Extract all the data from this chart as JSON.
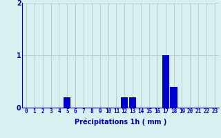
{
  "hours": [
    0,
    1,
    2,
    3,
    4,
    5,
    6,
    7,
    8,
    9,
    10,
    11,
    12,
    13,
    14,
    15,
    16,
    17,
    18,
    19,
    20,
    21,
    22,
    23
  ],
  "values": [
    0,
    0,
    0,
    0,
    0,
    0.2,
    0,
    0,
    0,
    0,
    0,
    0,
    0.2,
    0.2,
    0,
    0,
    0,
    1.0,
    0.4,
    0,
    0,
    0,
    0,
    0
  ],
  "bar_color": "#0000cc",
  "background_color": "#d8f0f0",
  "grid_color": "#b8d0d0",
  "axis_color": "#0000aa",
  "xlabel": "Précipitations 1h ( mm )",
  "ylim": [
    0,
    2
  ],
  "yticks": [
    0,
    1,
    2
  ],
  "xlim": [
    -0.5,
    23.5
  ],
  "bar_width": 0.85,
  "xlabel_fontsize": 7,
  "tick_fontsize": 5.5,
  "ytick_fontsize": 7
}
